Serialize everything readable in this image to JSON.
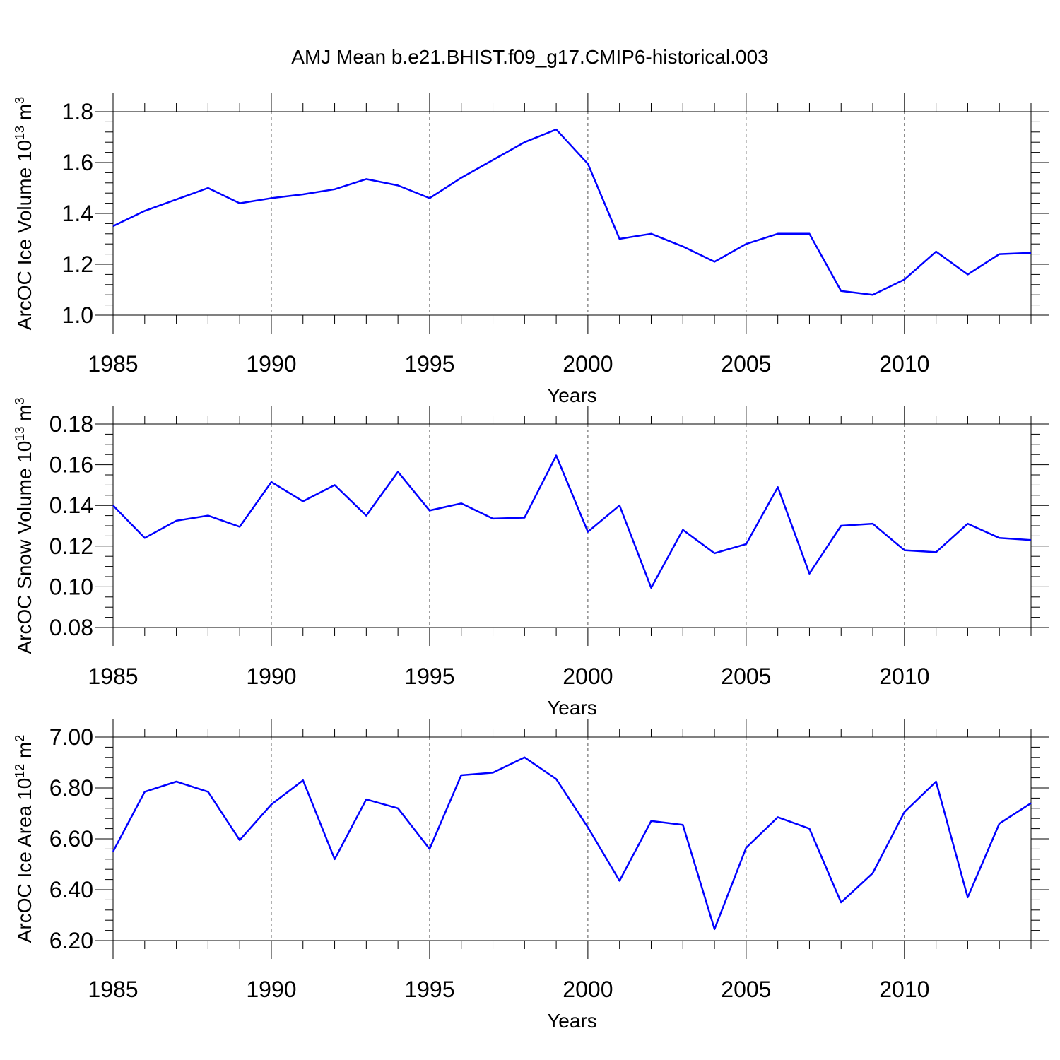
{
  "title": "AMJ Mean b.e21.BHIST.f09_g17.CMIP6-historical.003",
  "line_color": "#0000ff",
  "chart_data": [
    {
      "type": "line",
      "ylabel_main": "ArcOC Ice Volume 10",
      "ylabel_exp": "13",
      "ylabel_unit": " m",
      "ylabel_unit_exp": "3",
      "xlabel": "Years",
      "xlim": [
        1985,
        2014
      ],
      "ylim": [
        1.0,
        1.8
      ],
      "y_major_ticks": [
        1.0,
        1.2,
        1.4,
        1.6,
        1.8
      ],
      "y_tick_labels": [
        "1.0",
        "1.2",
        "1.4",
        "1.6",
        "1.8"
      ],
      "y_minor_step": 0.04,
      "x_ticks": [
        1985,
        1990,
        1995,
        2000,
        2005,
        2010
      ],
      "x_tick_labels": [
        "1985",
        "1990",
        "1995",
        "2000",
        "2005",
        "2010"
      ],
      "x_grid": "dashed",
      "x": [
        1985,
        1986,
        1987,
        1988,
        1989,
        1990,
        1991,
        1992,
        1993,
        1994,
        1995,
        1996,
        1997,
        1998,
        1999,
        2000,
        2001,
        2002,
        2003,
        2004,
        2005,
        2006,
        2007,
        2008,
        2009,
        2010,
        2011,
        2012,
        2013,
        2014
      ],
      "values": [
        1.35,
        1.41,
        1.455,
        1.5,
        1.44,
        1.46,
        1.475,
        1.495,
        1.535,
        1.51,
        1.46,
        1.54,
        1.61,
        1.68,
        1.73,
        1.595,
        1.3,
        1.32,
        1.27,
        1.21,
        1.28,
        1.32,
        1.32,
        1.095,
        1.08,
        1.14,
        1.25,
        1.16,
        1.24,
        1.245
      ]
    },
    {
      "type": "line",
      "ylabel_main": "ArcOC Snow Volume 10",
      "ylabel_exp": "13",
      "ylabel_unit": " m",
      "ylabel_unit_exp": "3",
      "xlabel": "Years",
      "xlim": [
        1985,
        2014
      ],
      "ylim": [
        0.08,
        0.18
      ],
      "y_major_ticks": [
        0.08,
        0.1,
        0.12,
        0.14,
        0.16,
        0.18
      ],
      "y_tick_labels": [
        "0.08",
        "0.10",
        "0.12",
        "0.14",
        "0.16",
        "0.18"
      ],
      "y_minor_step": 0.005,
      "x_ticks": [
        1985,
        1990,
        1995,
        2000,
        2005,
        2010
      ],
      "x_tick_labels": [
        "1985",
        "1990",
        "1995",
        "2000",
        "2005",
        "2010"
      ],
      "x_grid": "dashed",
      "x": [
        1985,
        1986,
        1987,
        1988,
        1989,
        1990,
        1991,
        1992,
        1993,
        1994,
        1995,
        1996,
        1997,
        1998,
        1999,
        2000,
        2001,
        2002,
        2003,
        2004,
        2005,
        2006,
        2007,
        2008,
        2009,
        2010,
        2011,
        2012,
        2013,
        2014
      ],
      "values": [
        0.14,
        0.124,
        0.1325,
        0.135,
        0.1295,
        0.1515,
        0.142,
        0.15,
        0.135,
        0.1565,
        0.1375,
        0.141,
        0.1335,
        0.134,
        0.1645,
        0.127,
        0.14,
        0.0995,
        0.128,
        0.1165,
        0.121,
        0.149,
        0.1065,
        0.13,
        0.131,
        0.118,
        0.117,
        0.131,
        0.124,
        0.123
      ]
    },
    {
      "type": "line",
      "ylabel_main": "ArcOC Ice Area 10",
      "ylabel_exp": "12",
      "ylabel_unit": " m",
      "ylabel_unit_exp": "2",
      "xlabel": "Years",
      "xlim": [
        1985,
        2014
      ],
      "ylim": [
        6.2,
        7.0
      ],
      "y_major_ticks": [
        6.2,
        6.4,
        6.6,
        6.8,
        7.0
      ],
      "y_tick_labels": [
        "6.20",
        "6.40",
        "6.60",
        "6.80",
        "7.00"
      ],
      "y_minor_step": 0.04,
      "x_ticks": [
        1985,
        1990,
        1995,
        2000,
        2005,
        2010
      ],
      "x_tick_labels": [
        "1985",
        "1990",
        "1995",
        "2000",
        "2005",
        "2010"
      ],
      "x_grid": "dashed",
      "x": [
        1985,
        1986,
        1987,
        1988,
        1989,
        1990,
        1991,
        1992,
        1993,
        1994,
        1995,
        1996,
        1997,
        1998,
        1999,
        2000,
        2001,
        2002,
        2003,
        2004,
        2005,
        2006,
        2007,
        2008,
        2009,
        2010,
        2011,
        2012,
        2013,
        2014
      ],
      "values": [
        6.55,
        6.785,
        6.825,
        6.785,
        6.595,
        6.735,
        6.83,
        6.52,
        6.755,
        6.72,
        6.56,
        6.85,
        6.86,
        6.92,
        6.835,
        6.645,
        6.435,
        6.67,
        6.655,
        6.245,
        6.565,
        6.685,
        6.64,
        6.35,
        6.465,
        6.705,
        6.825,
        6.37,
        6.66,
        6.74
      ]
    }
  ]
}
